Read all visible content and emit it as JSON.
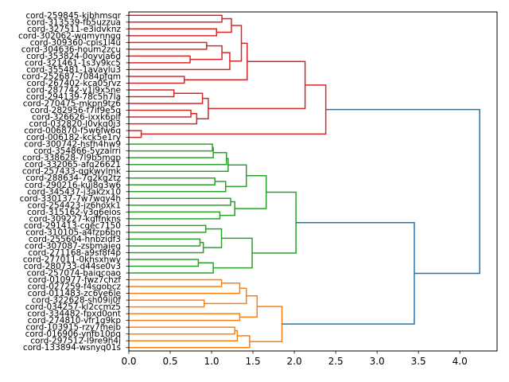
{
  "chart_data": {
    "type": "dendrogram",
    "orientation": "horizontal",
    "title": "",
    "xlabel": "",
    "ylabel": "",
    "xlim": [
      0,
      4.45
    ],
    "xticks": [
      0.0,
      0.5,
      1.0,
      1.5,
      2.0,
      2.5,
      3.0,
      3.5,
      4.0
    ],
    "xtick_labels": [
      "0.0",
      "0.5",
      "1.0",
      "1.5",
      "2.0",
      "2.5",
      "3.0",
      "3.5",
      "4.0"
    ],
    "colors": {
      "R": "#d62728",
      "G": "#2ca02c",
      "O": "#ff7f0e",
      "B": "#1f77b4"
    },
    "leaves": [
      "cord-259845-kjbhmsqr",
      "cord-313539-fb5uzzua",
      "cord-327511-e3idvknz",
      "cord-302062-wqmynngg",
      "cord-309360-cpis1l4u",
      "cord-304636-houm2zcu",
      "cord-353824-0oyvja6d",
      "cord-321461-1s3y9kc5",
      "cord-355481-1avaylu3",
      "cord-252687-7084pfqm",
      "cord-267402-kca05rvz",
      "cord-287742-y1j9x5ne",
      "cord-294139-78c5h7la",
      "cord-270475-mkpn9tz6",
      "cord-282956-f7if9e5q",
      "cord-326626-ixxk6plf",
      "cord-032820-l0vkq0j3",
      "cord-006870-f5w6fw6q",
      "cord-006182-kck5e1ry",
      "cord-300742-hsfh4hw9",
      "cord-354866-5yzalrri",
      "cord-338628-7l9b5mqp",
      "cord-332065-afq26621",
      "cord-257433-qgkwylmk",
      "cord-288634-7g2kg2tz",
      "cord-290216-kuj8g3w6",
      "cord-345437-j3akzx10",
      "cord-330137-7w7wqy4h",
      "cord-254423-jz6hoxk1",
      "cord-315162-y3g6eios",
      "cord-309227-kgffnkns",
      "cord-291413-cgec7150",
      "cord-310105-a4fzp6bn",
      "cord-255604-hnbzidf3",
      "cord-307087-zsbmaieg",
      "cord-271168-a9sf8f4p",
      "cord-277011-0khsxhwv",
      "cord-280733-d44se0v3",
      "cord-257074-baiqcoao",
      "cord-010977-fwz7chzf",
      "cord-027259-f4sgobcz",
      "cord-011483-zc6ye6le",
      "cord-322628-sh09ij0f",
      "cord-034257-kl2ccmz5",
      "cord-334482-fpxd0ont",
      "cord-274810-vfr1g9kp",
      "cord-103915-rzy7mejb",
      "cord-016906-ynfb10pq",
      "cord-297512-l9re9h4j",
      "cord-133894-wsnyq01s"
    ],
    "links": [
      [
        0,
        1,
        1.125,
        "R"
      ],
      [
        2,
        3,
        1.06,
        "R"
      ],
      [
        50,
        51,
        1.24,
        "R"
      ],
      [
        4,
        5,
        0.94,
        "R"
      ],
      [
        6,
        7,
        0.74,
        "R"
      ],
      [
        53,
        54,
        1.125,
        "R"
      ],
      [
        55,
        8,
        1.22,
        "R"
      ],
      [
        52,
        56,
        1.36,
        "R"
      ],
      [
        9,
        10,
        0.67,
        "R"
      ],
      [
        57,
        58,
        1.43,
        "R"
      ],
      [
        11,
        12,
        0.545,
        "R"
      ],
      [
        60,
        13,
        0.89,
        "R"
      ],
      [
        14,
        15,
        0.75,
        "R"
      ],
      [
        62,
        16,
        0.82,
        "R"
      ],
      [
        61,
        63,
        0.96,
        "R"
      ],
      [
        59,
        64,
        2.13,
        "R"
      ],
      [
        17,
        18,
        0.15,
        "R"
      ],
      [
        65,
        66,
        2.38,
        "R"
      ],
      [
        19,
        20,
        1.01,
        "G"
      ],
      [
        68,
        21,
        1.02,
        "G"
      ],
      [
        69,
        22,
        1.18,
        "G"
      ],
      [
        70,
        23,
        1.2,
        "G"
      ],
      [
        24,
        25,
        1.04,
        "G"
      ],
      [
        72,
        26,
        1.17,
        "G"
      ],
      [
        71,
        73,
        1.42,
        "G"
      ],
      [
        27,
        28,
        1.23,
        "G"
      ],
      [
        29,
        30,
        1.1,
        "G"
      ],
      [
        75,
        76,
        1.28,
        "G"
      ],
      [
        74,
        77,
        1.66,
        "G"
      ],
      [
        31,
        32,
        0.93,
        "G"
      ],
      [
        33,
        34,
        0.86,
        "G"
      ],
      [
        80,
        35,
        0.9,
        "G"
      ],
      [
        79,
        81,
        1.12,
        "G"
      ],
      [
        36,
        37,
        0.84,
        "G"
      ],
      [
        83,
        38,
        1.02,
        "G"
      ],
      [
        82,
        84,
        1.49,
        "G"
      ],
      [
        78,
        85,
        2.02,
        "G"
      ],
      [
        39,
        40,
        1.12,
        "O"
      ],
      [
        87,
        41,
        1.34,
        "O"
      ],
      [
        42,
        43,
        0.91,
        "O"
      ],
      [
        88,
        89,
        1.42,
        "O"
      ],
      [
        44,
        45,
        1.34,
        "O"
      ],
      [
        90,
        91,
        1.55,
        "O"
      ],
      [
        46,
        47,
        1.28,
        "O"
      ],
      [
        93,
        48,
        1.31,
        "O"
      ],
      [
        94,
        49,
        1.46,
        "O"
      ],
      [
        92,
        95,
        1.85,
        "O"
      ],
      [
        86,
        96,
        3.45,
        "B"
      ],
      [
        67,
        97,
        4.24,
        "B"
      ]
    ]
  }
}
